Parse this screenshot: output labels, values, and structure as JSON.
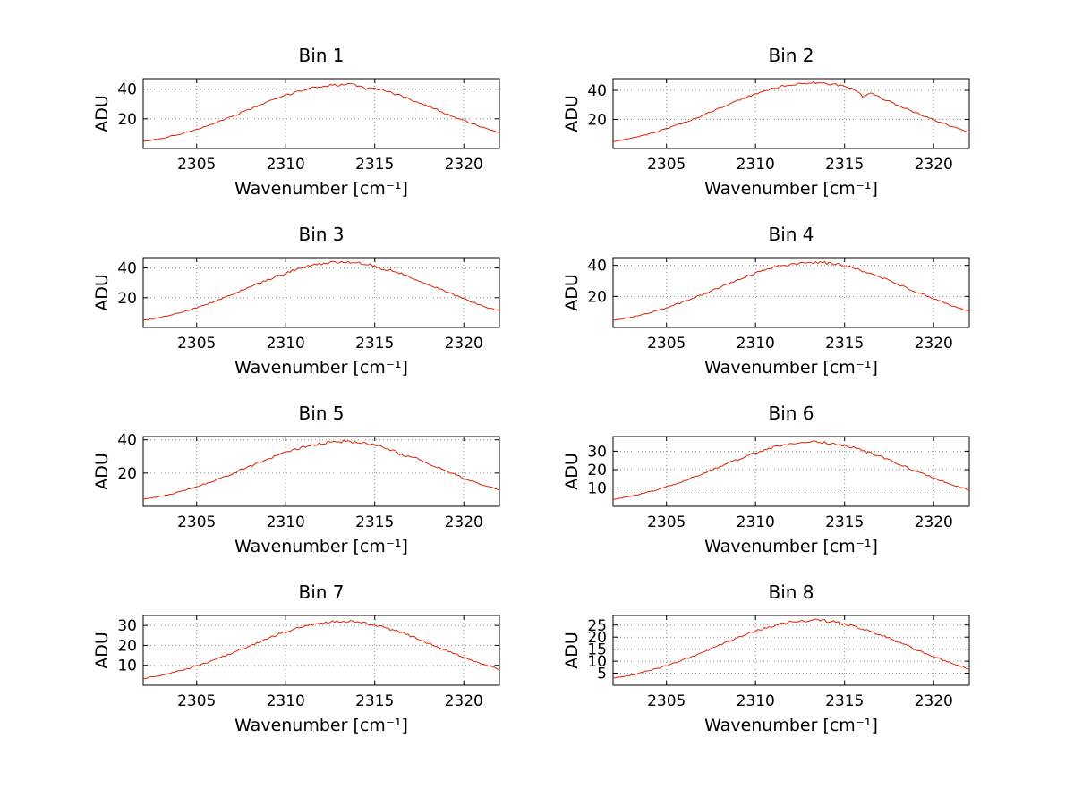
{
  "figure": {
    "background": "#ffffff",
    "grid_color": "#8a8a8a",
    "axis_color": "#000000"
  },
  "chart_data": [
    {
      "type": "line",
      "title": "Bin 1",
      "xlabel": "Wavenumber [cm⁻¹]",
      "ylabel": "ADU",
      "xlim": [
        2302,
        2322
      ],
      "ylim": [
        0,
        47
      ],
      "xticks": [
        2305,
        2310,
        2315,
        2320
      ],
      "yticks": [
        20,
        40
      ],
      "grid": true,
      "legend": false,
      "line_color": "#dd2200",
      "noise": 0.9,
      "x_start": 2302,
      "x_step": 0.5,
      "y": [
        4.6,
        5.7,
        6.6,
        8.2,
        9.4,
        11.3,
        12.9,
        15.1,
        17.0,
        19.4,
        21.6,
        24.2,
        26.5,
        29.1,
        31.3,
        33.8,
        35.7,
        37.9,
        39.4,
        41.0,
        41.7,
        42.8,
        42.6,
        43.3,
        42.2,
        40.2,
        40.8,
        39.3,
        37.2,
        35.5,
        33.1,
        31.0,
        28.4,
        26.2,
        23.5,
        21.3,
        18.8,
        16.8,
        14.5,
        12.7,
        10.7
      ]
    },
    {
      "type": "line",
      "title": "Bin 2",
      "xlabel": "Wavenumber [cm⁻¹]",
      "ylabel": "ADU",
      "xlim": [
        2302,
        2322
      ],
      "ylim": [
        0,
        48
      ],
      "xticks": [
        2305,
        2310,
        2315,
        2320
      ],
      "yticks": [
        20,
        40
      ],
      "grid": true,
      "legend": false,
      "line_color": "#dd2200",
      "noise": 0.9,
      "x_start": 2302,
      "x_step": 0.5,
      "y": [
        4.8,
        5.9,
        7.1,
        8.4,
        10.0,
        11.6,
        13.7,
        15.7,
        17.8,
        20.3,
        22.6,
        25.3,
        27.7,
        30.5,
        32.8,
        35.4,
        37.4,
        39.6,
        41.2,
        42.8,
        43.7,
        44.8,
        44.9,
        45.2,
        44.3,
        43.9,
        42.3,
        41.2,
        35.8,
        38.0,
        34.8,
        32.5,
        29.8,
        27.4,
        24.6,
        22.3,
        19.7,
        17.5,
        15.1,
        13.3,
        11.2
      ]
    },
    {
      "type": "line",
      "title": "Bin 3",
      "xlabel": "Wavenumber [cm⁻¹]",
      "ylabel": "ADU",
      "xlim": [
        2302,
        2322
      ],
      "ylim": [
        0,
        47
      ],
      "xticks": [
        2305,
        2310,
        2315,
        2320
      ],
      "yticks": [
        20,
        40
      ],
      "grid": true,
      "legend": false,
      "line_color": "#dd2200",
      "noise": 0.9,
      "x_start": 2302,
      "x_step": 0.5,
      "y": [
        4.7,
        5.7,
        6.9,
        8.2,
        9.8,
        11.4,
        13.3,
        15.3,
        17.4,
        19.9,
        22.1,
        24.8,
        27.1,
        29.8,
        32.1,
        34.6,
        36.6,
        38.7,
        40.3,
        41.9,
        42.7,
        43.7,
        43.8,
        44.1,
        43.4,
        42.8,
        41.4,
        38.8,
        38.4,
        36.2,
        34.1,
        31.6,
        29.3,
        26.6,
        24.3,
        21.6,
        19.4,
        16.9,
        15.0,
        12.8,
        11.2
      ]
    },
    {
      "type": "line",
      "title": "Bin 4",
      "xlabel": "Wavenumber [cm⁻¹]",
      "ylabel": "ADU",
      "xlim": [
        2302,
        2322
      ],
      "ylim": [
        0,
        45
      ],
      "xticks": [
        2305,
        2310,
        2315,
        2320
      ],
      "yticks": [
        20,
        40
      ],
      "grid": true,
      "legend": false,
      "line_color": "#dd2200",
      "noise": 0.9,
      "x_start": 2302,
      "x_step": 0.5,
      "y": [
        4.5,
        5.5,
        6.6,
        7.9,
        9.3,
        11.0,
        12.6,
        14.7,
        16.6,
        19.0,
        21.1,
        23.7,
        25.9,
        28.4,
        30.6,
        33.0,
        34.9,
        37.0,
        38.4,
        40.0,
        40.8,
        41.7,
        41.9,
        42.1,
        41.4,
        40.9,
        39.5,
        38.3,
        36.4,
        34.7,
        32.4,
        30.3,
        27.8,
        25.6,
        23.0,
        20.8,
        18.3,
        16.4,
        14.1,
        12.4,
        10.5
      ]
    },
    {
      "type": "line",
      "title": "Bin 5",
      "xlabel": "Wavenumber [cm⁻¹]",
      "ylabel": "ADU",
      "xlim": [
        2302,
        2322
      ],
      "ylim": [
        0,
        42
      ],
      "xticks": [
        2305,
        2310,
        2315,
        2320
      ],
      "yticks": [
        20,
        40
      ],
      "grid": true,
      "legend": false,
      "line_color": "#dd2200",
      "noise": 0.9,
      "x_start": 2302,
      "x_step": 0.5,
      "y": [
        4.2,
        5.1,
        6.1,
        7.3,
        8.6,
        10.1,
        11.8,
        13.6,
        15.5,
        17.6,
        19.6,
        22.0,
        24.0,
        26.4,
        28.4,
        30.7,
        32.4,
        34.3,
        35.7,
        37.1,
        37.9,
        38.8,
        38.9,
        39.1,
        38.4,
        37.9,
        36.6,
        35.6,
        33.7,
        30.9,
        30.0,
        28.2,
        25.8,
        23.8,
        21.3,
        19.3,
        17.0,
        15.2,
        13.1,
        11.5,
        9.7
      ]
    },
    {
      "type": "line",
      "title": "Bin 6",
      "xlabel": "Wavenumber [cm⁻¹]",
      "ylabel": "ADU",
      "xlim": [
        2302,
        2322
      ],
      "ylim": [
        0,
        38
      ],
      "xticks": [
        2305,
        2310,
        2315,
        2320
      ],
      "yticks": [
        10,
        20,
        30
      ],
      "grid": true,
      "legend": false,
      "line_color": "#dd2200",
      "noise": 0.7,
      "x_start": 2302,
      "x_step": 0.5,
      "y": [
        3.7,
        4.6,
        5.5,
        6.6,
        7.8,
        9.1,
        10.6,
        12.2,
        13.8,
        15.8,
        17.6,
        19.7,
        21.5,
        23.7,
        25.5,
        27.5,
        29.1,
        30.8,
        32.0,
        33.3,
        34.0,
        34.8,
        34.9,
        35.1,
        34.4,
        34.1,
        32.9,
        32.0,
        30.3,
        28.9,
        27.0,
        25.3,
        23.1,
        21.3,
        19.1,
        17.4,
        15.3,
        13.7,
        11.8,
        10.4,
        8.7
      ]
    },
    {
      "type": "line",
      "title": "Bin 7",
      "xlabel": "Wavenumber [cm⁻¹]",
      "ylabel": "ADU",
      "xlim": [
        2302,
        2322
      ],
      "ylim": [
        0,
        35
      ],
      "xticks": [
        2305,
        2310,
        2315,
        2320
      ],
      "yticks": [
        10,
        20,
        30
      ],
      "grid": true,
      "legend": false,
      "line_color": "#dd2200",
      "noise": 0.7,
      "x_start": 2302,
      "x_step": 0.5,
      "y": [
        3.4,
        4.2,
        5.0,
        6.0,
        7.1,
        8.3,
        9.7,
        11.1,
        12.7,
        14.4,
        16.1,
        18.0,
        19.7,
        21.7,
        23.3,
        25.2,
        26.6,
        28.2,
        29.3,
        30.5,
        31.1,
        31.8,
        31.9,
        32.1,
        31.5,
        31.1,
        30.1,
        29.2,
        27.7,
        26.5,
        24.6,
        23.1,
        21.1,
        19.5,
        17.5,
        15.9,
        13.9,
        12.5,
        10.7,
        9.5,
        8.0
      ]
    },
    {
      "type": "line",
      "title": "Bin 8",
      "xlabel": "Wavenumber [cm⁻¹]",
      "ylabel": "ADU",
      "xlim": [
        2302,
        2322
      ],
      "ylim": [
        0,
        29
      ],
      "xticks": [
        2305,
        2310,
        2315,
        2320
      ],
      "yticks": [
        5,
        10,
        15,
        20,
        25
      ],
      "grid": true,
      "legend": false,
      "line_color": "#dd2200",
      "noise": 0.6,
      "x_start": 2302,
      "x_step": 0.5,
      "y": [
        2.9,
        3.5,
        4.2,
        5.1,
        6.0,
        7.0,
        8.2,
        9.4,
        10.7,
        12.1,
        13.6,
        15.1,
        16.7,
        18.2,
        19.7,
        21.3,
        22.4,
        23.8,
        24.7,
        25.7,
        26.2,
        26.9,
        26.9,
        27.1,
        26.6,
        26.3,
        25.4,
        24.7,
        23.4,
        22.3,
        20.8,
        19.5,
        17.8,
        16.5,
        14.7,
        13.4,
        11.8,
        10.6,
        9.1,
        8.0,
        6.7
      ]
    }
  ]
}
